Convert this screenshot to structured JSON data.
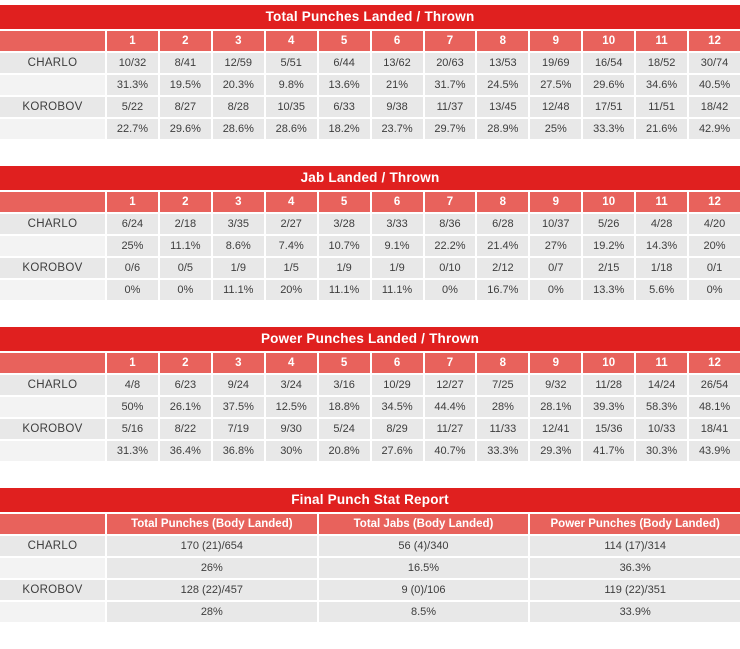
{
  "report": "boxing-punch-stats",
  "colors": {
    "title_bar": "#e0201f",
    "header_row": "#e8625c",
    "cell_bg": "#e8e8e8",
    "percent_name_bg": "#f3f3f3",
    "header_text": "#ffffff",
    "cell_text": "#3d3d3d"
  },
  "chart_data": [
    {
      "type": "table",
      "title": "Total Punches Landed / Thrown",
      "column_headers": [
        "1",
        "2",
        "3",
        "4",
        "5",
        "6",
        "7",
        "8",
        "9",
        "10",
        "11",
        "12"
      ],
      "fighters": [
        {
          "name": "CHARLO",
          "values": [
            "10/32",
            "8/41",
            "12/59",
            "5/51",
            "6/44",
            "13/62",
            "20/63",
            "13/53",
            "19/69",
            "16/54",
            "18/52",
            "30/74"
          ],
          "percents": [
            "31.3%",
            "19.5%",
            "20.3%",
            "9.8%",
            "13.6%",
            "21%",
            "31.7%",
            "24.5%",
            "27.5%",
            "29.6%",
            "34.6%",
            "40.5%"
          ]
        },
        {
          "name": "KOROBOV",
          "values": [
            "5/22",
            "8/27",
            "8/28",
            "10/35",
            "6/33",
            "9/38",
            "11/37",
            "13/45",
            "12/48",
            "17/51",
            "11/51",
            "18/42"
          ],
          "percents": [
            "22.7%",
            "29.6%",
            "28.6%",
            "28.6%",
            "18.2%",
            "23.7%",
            "29.7%",
            "28.9%",
            "25%",
            "33.3%",
            "21.6%",
            "42.9%"
          ]
        }
      ]
    },
    {
      "type": "table",
      "title": "Jab Landed / Thrown",
      "column_headers": [
        "1",
        "2",
        "3",
        "4",
        "5",
        "6",
        "7",
        "8",
        "9",
        "10",
        "11",
        "12"
      ],
      "fighters": [
        {
          "name": "CHARLO",
          "values": [
            "6/24",
            "2/18",
            "3/35",
            "2/27",
            "3/28",
            "3/33",
            "8/36",
            "6/28",
            "10/37",
            "5/26",
            "4/28",
            "4/20"
          ],
          "percents": [
            "25%",
            "11.1%",
            "8.6%",
            "7.4%",
            "10.7%",
            "9.1%",
            "22.2%",
            "21.4%",
            "27%",
            "19.2%",
            "14.3%",
            "20%"
          ]
        },
        {
          "name": "KOROBOV",
          "values": [
            "0/6",
            "0/5",
            "1/9",
            "1/5",
            "1/9",
            "1/9",
            "0/10",
            "2/12",
            "0/7",
            "2/15",
            "1/18",
            "0/1"
          ],
          "percents": [
            "0%",
            "0%",
            "11.1%",
            "20%",
            "11.1%",
            "11.1%",
            "0%",
            "16.7%",
            "0%",
            "13.3%",
            "5.6%",
            "0%"
          ]
        }
      ]
    },
    {
      "type": "table",
      "title": "Power Punches Landed / Thrown",
      "column_headers": [
        "1",
        "2",
        "3",
        "4",
        "5",
        "6",
        "7",
        "8",
        "9",
        "10",
        "11",
        "12"
      ],
      "fighters": [
        {
          "name": "CHARLO",
          "values": [
            "4/8",
            "6/23",
            "9/24",
            "3/24",
            "3/16",
            "10/29",
            "12/27",
            "7/25",
            "9/32",
            "11/28",
            "14/24",
            "26/54"
          ],
          "percents": [
            "50%",
            "26.1%",
            "37.5%",
            "12.5%",
            "18.8%",
            "34.5%",
            "44.4%",
            "28%",
            "28.1%",
            "39.3%",
            "58.3%",
            "48.1%"
          ]
        },
        {
          "name": "KOROBOV",
          "values": [
            "5/16",
            "8/22",
            "7/19",
            "9/30",
            "5/24",
            "8/29",
            "11/27",
            "11/33",
            "12/41",
            "15/36",
            "10/33",
            "18/41"
          ],
          "percents": [
            "31.3%",
            "36.4%",
            "36.8%",
            "30%",
            "20.8%",
            "27.6%",
            "40.7%",
            "33.3%",
            "29.3%",
            "41.7%",
            "30.3%",
            "43.9%"
          ]
        }
      ]
    },
    {
      "type": "table",
      "title": "Final Punch Stat Report",
      "column_headers": [
        "Total Punches (Body Landed)",
        "Total Jabs (Body Landed)",
        "Power Punches (Body Landed)"
      ],
      "fighters": [
        {
          "name": "CHARLO",
          "values": [
            "170 (21)/654",
            "56 (4)/340",
            "114 (17)/314"
          ],
          "percents": [
            "26%",
            "16.5%",
            "36.3%"
          ]
        },
        {
          "name": "KOROBOV",
          "values": [
            "128 (22)/457",
            "9 (0)/106",
            "119 (22)/351"
          ],
          "percents": [
            "28%",
            "8.5%",
            "33.9%"
          ]
        }
      ]
    }
  ]
}
